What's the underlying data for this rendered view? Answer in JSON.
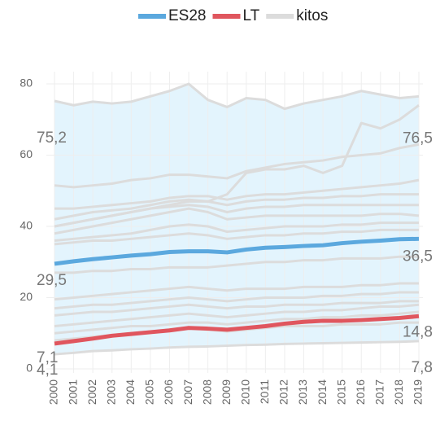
{
  "chart_data": {
    "type": "line",
    "categories": [
      "2000",
      "2001",
      "2002",
      "2003",
      "2004",
      "2005",
      "2006",
      "2007",
      "2008",
      "2009",
      "2010",
      "2011",
      "2012",
      "2013",
      "2014",
      "2015",
      "2016",
      "2017",
      "2018",
      "2019"
    ],
    "ylim": [
      0,
      80
    ],
    "yticks": [
      0,
      20,
      40,
      60,
      80
    ],
    "grid": true,
    "range_color": "#e3f4fd",
    "series": [
      {
        "name": "ES28",
        "color": "#5ba8de",
        "values": [
          29.5,
          30.2,
          30.8,
          31.3,
          31.8,
          32.2,
          32.8,
          33,
          33,
          32.7,
          33.5,
          34,
          34.2,
          34.5,
          34.7,
          35.3,
          35.7,
          36,
          36.4,
          36.5
        ]
      },
      {
        "name": "LT",
        "color": "#e0565e",
        "values": [
          7.1,
          7.8,
          8.5,
          9.3,
          9.8,
          10.3,
          10.8,
          11.5,
          11.3,
          11,
          11.5,
          12,
          12.7,
          13.2,
          13.5,
          13.5,
          13.7,
          14,
          14.3,
          14.8
        ]
      },
      {
        "name": "kitos",
        "color": "#dcdcdc",
        "lines": [
          [
            75.2,
            74,
            75,
            74.5,
            75,
            76.5,
            78,
            80,
            75.5,
            73.5,
            76,
            75.5,
            73,
            74.5,
            75.5,
            76.5,
            78,
            77,
            76,
            76.5
          ],
          [
            40,
            41,
            42,
            43,
            44,
            45,
            46,
            47,
            47,
            49,
            55,
            56,
            56,
            57,
            55,
            57,
            69,
            67.5,
            70,
            74
          ],
          [
            51.5,
            51,
            51.5,
            52,
            53,
            53.5,
            54.5,
            54.5,
            54,
            53.5,
            55.5,
            56.5,
            57.5,
            58,
            58.5,
            59.5,
            60,
            60.5,
            62,
            63
          ],
          [
            45,
            45,
            45.5,
            46,
            46.5,
            47,
            48,
            48.5,
            48.5,
            47.5,
            48.5,
            49,
            49,
            49.5,
            50,
            50.5,
            51,
            51.5,
            52,
            53
          ],
          [
            42,
            43,
            44,
            44.5,
            45,
            46,
            47,
            47.5,
            47,
            46,
            47,
            47.5,
            47.5,
            48,
            48,
            48.5,
            48.5,
            49,
            49,
            49
          ],
          [
            40,
            41,
            42,
            43,
            44,
            45,
            45.5,
            46,
            45.5,
            44,
            45,
            45.5,
            45.5,
            46,
            46,
            46,
            46,
            46,
            46,
            46
          ],
          [
            38,
            39,
            40,
            41,
            42,
            43,
            44,
            45,
            44,
            42,
            42.5,
            43,
            43,
            43,
            43,
            43,
            43,
            43.5,
            43.5,
            43
          ],
          [
            36,
            36.5,
            37,
            37.5,
            38,
            39,
            40,
            40.5,
            40,
            38.5,
            39,
            39.5,
            40,
            40,
            40,
            40.5,
            40.5,
            41,
            41,
            41
          ],
          [
            35,
            35.5,
            36,
            36,
            36.5,
            37,
            37.5,
            38,
            37.5,
            36.5,
            37,
            37.5,
            37.5,
            38,
            38,
            38.5,
            38.5,
            39,
            39,
            39
          ],
          [
            27,
            27,
            27.5,
            27.5,
            28,
            28,
            28.5,
            28.5,
            28.5,
            29,
            29.5,
            30,
            30,
            30.5,
            30.5,
            31,
            31,
            31,
            31.5,
            31.5
          ],
          [
            19.5,
            20,
            20.5,
            21,
            21.5,
            22,
            22.5,
            23,
            22.5,
            22,
            22.5,
            22.5,
            22.5,
            23,
            23,
            23,
            23.5,
            23.5,
            24,
            24
          ],
          [
            17,
            17.5,
            18,
            18,
            18.5,
            19,
            19.5,
            20,
            19.5,
            19,
            19.5,
            20,
            20,
            20,
            20.5,
            20.5,
            21,
            21,
            21.5,
            21.5
          ],
          [
            15,
            15.5,
            16,
            16,
            16.5,
            17,
            17.5,
            18,
            17.5,
            17,
            17.5,
            17.5,
            18,
            18,
            18,
            18.5,
            18.5,
            18.5,
            19,
            19
          ],
          [
            12,
            12.5,
            13,
            13.5,
            14,
            14.5,
            15,
            15.5,
            15,
            14.5,
            15,
            15.5,
            16,
            16,
            16.5,
            16.5,
            17,
            17.5,
            17.5,
            18
          ],
          [
            10,
            10.5,
            11,
            11.5,
            12,
            12,
            12.5,
            13,
            13,
            12.5,
            13,
            13.5,
            14,
            14,
            14.5,
            14.5,
            15,
            15,
            15.5,
            16
          ],
          [
            8,
            8.5,
            9,
            9.5,
            10,
            10.5,
            11,
            11.5,
            11,
            10.5,
            11,
            11.5,
            12,
            12,
            12,
            12.5,
            12.5,
            12.5,
            13,
            13
          ],
          [
            4.1,
            4.5,
            5,
            5.2,
            5.5,
            5.7,
            6,
            6.2,
            6.3,
            6.5,
            6.7,
            6.8,
            7,
            7.1,
            7.2,
            7.3,
            7.4,
            7.5,
            7.6,
            7.8
          ]
        ]
      }
    ],
    "annotations": [
      {
        "x": "2000",
        "value": 75.2,
        "label": "75,2"
      },
      {
        "x": "2019",
        "value": 76.5,
        "label": "76,5"
      },
      {
        "x": "2000",
        "value": 29.5,
        "label": "29,5"
      },
      {
        "x": "2019",
        "value": 36.5,
        "label": "36,5"
      },
      {
        "x": "2000",
        "value": 7.1,
        "label": "7,1"
      },
      {
        "x": "2019",
        "value": 14.8,
        "label": "14,8"
      },
      {
        "x": "2000",
        "value": 4.1,
        "label": "4,1"
      },
      {
        "x": "2019",
        "value": 7.8,
        "label": "7,8"
      }
    ]
  }
}
